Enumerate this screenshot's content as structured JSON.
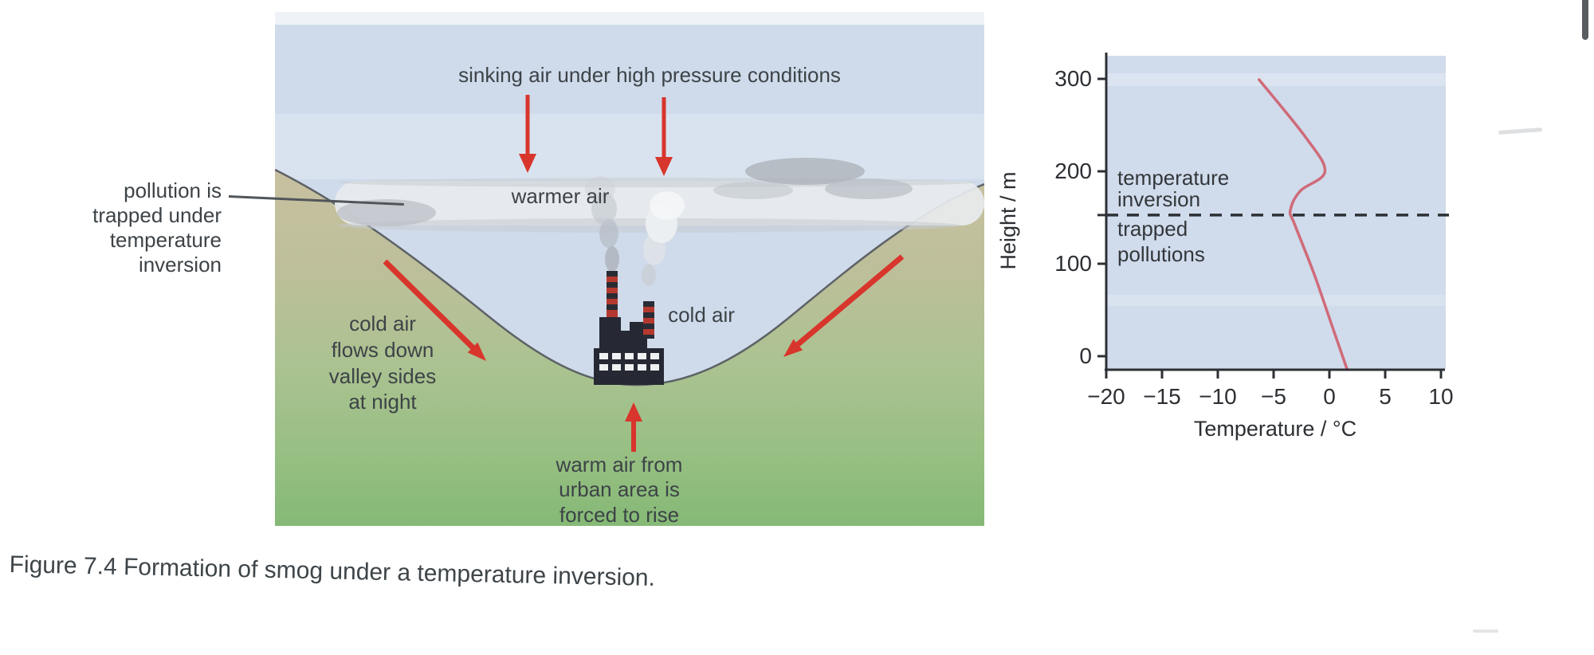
{
  "page": {
    "caption": "Figure 7.4 Formation of smog under a temperature inversion."
  },
  "diagram": {
    "labels": {
      "sinking_air": "sinking air under high pressure conditions",
      "warmer_air": "warmer air",
      "cold_air": "cold air",
      "pollution_trapped_lines": [
        "pollution is",
        "trapped under",
        "temperature",
        "inversion"
      ],
      "cold_air_flows_lines": [
        "cold air",
        "flows down",
        "valley sides",
        "at night"
      ],
      "warm_air_lines": [
        "warm air from",
        "urban area is",
        "forced to rise"
      ]
    }
  },
  "chart_data": {
    "type": "line",
    "title": "",
    "xlabel": "Temperature / °C",
    "ylabel": "Height / m",
    "xlim": [
      -20,
      10
    ],
    "ylim": [
      0,
      300
    ],
    "grid": false,
    "legend": false,
    "x_tick_labels": [
      "−20",
      "−15",
      "−10",
      "−5",
      "0",
      "5",
      "10"
    ],
    "y_tick_labels": [
      "300",
      "200",
      "100",
      "0"
    ],
    "annotations": {
      "above_dashed_line_lines": [
        "temperature",
        "inversion"
      ],
      "below_dashed_line_lines": [
        "trapped",
        "pollutions"
      ],
      "dashed_line_height_m": 160
    },
    "series": [
      {
        "name": "temperature-profile",
        "color": "#cf6b79",
        "points_height_temp": [
          [
            0,
            1.6
          ],
          [
            50,
            0.1
          ],
          [
            100,
            -1.4
          ],
          [
            150,
            -3.1
          ],
          [
            165,
            -3.5
          ],
          [
            185,
            -2.6
          ],
          [
            205,
            -0.4
          ],
          [
            240,
            -2.1
          ],
          [
            300,
            -6.3
          ]
        ]
      }
    ]
  },
  "colors": {
    "sky": "#cfdbeb",
    "haze": "#e8ebee",
    "terrain_tan": "#c8c0a1",
    "terrain_green": "#88bb78",
    "factory_dark": "#262833",
    "chimney_red": "#b5392f",
    "arrow_red": "#d8352c",
    "curve_pink": "#cf6b79",
    "ink": "#3d4347"
  }
}
